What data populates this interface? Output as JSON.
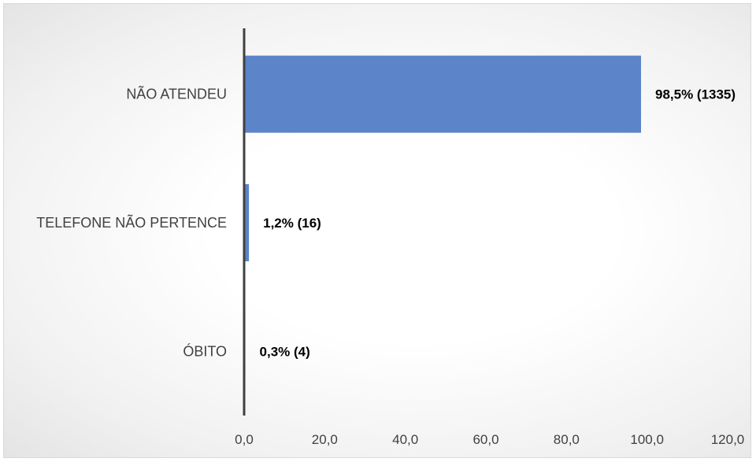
{
  "chart_data": {
    "type": "bar",
    "orientation": "horizontal",
    "categories": [
      "NÃO ATENDEU",
      "TELEFONE NÃO PERTENCE",
      "ÓBITO"
    ],
    "values": [
      98.5,
      1.2,
      0.3
    ],
    "data_labels": [
      "98,5% (1335)",
      "1,2% (16)",
      "0,3% (4)"
    ],
    "xlim": [
      0,
      120
    ],
    "x_ticks": [
      "0,0",
      "20,0",
      "40,0",
      "60,0",
      "80,0",
      "100,0",
      "120,0"
    ],
    "title": "",
    "xlabel": "",
    "ylabel": "",
    "grid": false,
    "legend": "none",
    "bar_color": "#5b84c9",
    "axis_color": "#404040"
  }
}
